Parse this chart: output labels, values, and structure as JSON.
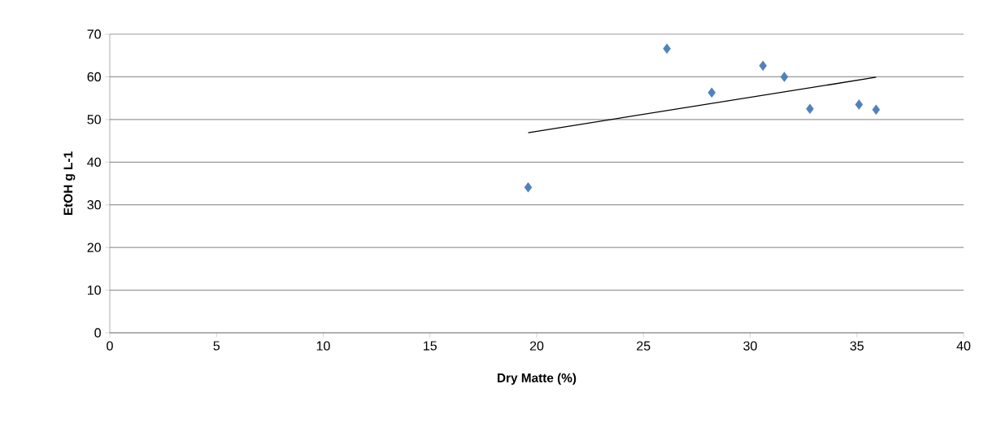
{
  "chart_data": {
    "type": "scatter",
    "xlabel": "Dry Matte (%)",
    "ylabel": "EtOH g L-1",
    "xlim": [
      0,
      40
    ],
    "ylim": [
      0,
      70
    ],
    "xticks": [
      0,
      5,
      10,
      15,
      20,
      25,
      30,
      35,
      40
    ],
    "yticks": [
      0,
      10,
      20,
      30,
      40,
      50,
      60,
      70
    ],
    "grid": "y",
    "series": [
      {
        "color": "#4f81bd",
        "marker": "diamond",
        "x": [
          19.6,
          26.1,
          28.2,
          30.6,
          31.6,
          32.8,
          35.1,
          35.9
        ],
        "values": [
          34.1,
          66.6,
          56.3,
          62.6,
          60.0,
          52.5,
          53.5,
          52.3
        ]
      },
      {
        "type": "line",
        "color": "#000000",
        "marker": "none",
        "x": [
          19.6,
          35.9
        ],
        "values": [
          46.9,
          59.9
        ]
      }
    ]
  }
}
